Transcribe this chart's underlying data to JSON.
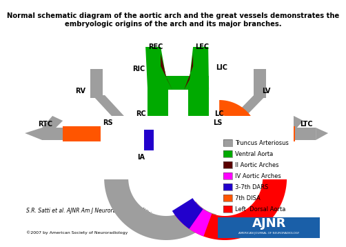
{
  "title": "Normal schematic diagram of the aortic arch and the great vessels demonstrates the\nembryologic origins of the arch and its major branches.",
  "title_fontsize": 7.2,
  "colors": {
    "truncus": "#9e9e9e",
    "ventral": "#00aa00",
    "II_arch": "#5a0000",
    "IV_arch": "#ff00ff",
    "DARS": "#2200cc",
    "DISA": "#ff5500",
    "left_dorsal": "#ff0000",
    "bg": "#ffffff"
  },
  "legend_items": [
    [
      "Truncus Arteriosus",
      "#9e9e9e"
    ],
    [
      "Ventral Aorta",
      "#00aa00"
    ],
    [
      "II Aortic Arches",
      "#5a0000"
    ],
    [
      "IV Aortic Arches",
      "#ff00ff"
    ],
    [
      "3-7th DARS",
      "#2200cc"
    ],
    [
      "7th DISA",
      "#ff5500"
    ],
    [
      "Left  Dorsal Aorta",
      "#ff0000"
    ]
  ],
  "citation": "S.R. Satti et al. AJNR Am J Neuroradiol 2007;28:976-980",
  "copyright": "©2007 by American Society of Neuroradiology"
}
